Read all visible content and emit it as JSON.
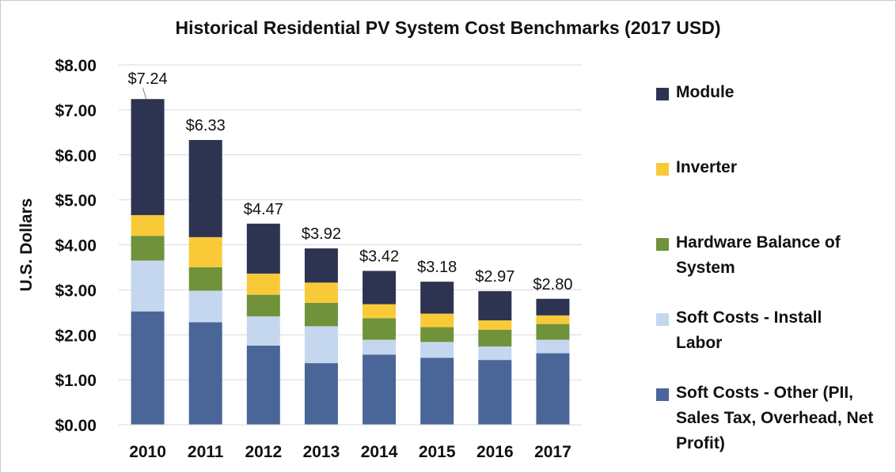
{
  "chart_data": {
    "type": "bar",
    "stacked": true,
    "title": "Historical Residential PV System Cost Benchmarks (2017 USD)",
    "xlabel": "",
    "ylabel": "U.S. Dollars",
    "ylim": [
      0,
      8
    ],
    "yticks": [
      "$0.00",
      "$1.00",
      "$2.00",
      "$3.00",
      "$4.00",
      "$5.00",
      "$6.00",
      "$7.00",
      "$8.00"
    ],
    "grid": true,
    "legend_position": "right",
    "categories": [
      "2010",
      "2011",
      "2012",
      "2013",
      "2014",
      "2015",
      "2016",
      "2017"
    ],
    "totals": [
      "$7.24",
      "$6.33",
      "$4.47",
      "$3.92",
      "$3.42",
      "$3.18",
      "$2.97",
      "$2.80"
    ],
    "series": [
      {
        "name": "Soft Costs - Other (PII, Sales Tax, Overhead, Net Profit)",
        "color": "#4a6699",
        "values": [
          2.52,
          2.28,
          1.76,
          1.37,
          1.56,
          1.49,
          1.44,
          1.59
        ]
      },
      {
        "name": "Soft Costs - Install Labor",
        "color": "#c5d7ef",
        "values": [
          1.13,
          0.7,
          0.65,
          0.82,
          0.33,
          0.35,
          0.3,
          0.3
        ]
      },
      {
        "name": "Hardware Balance of System",
        "color": "#70923a",
        "values": [
          0.55,
          0.52,
          0.48,
          0.52,
          0.48,
          0.33,
          0.37,
          0.35
        ]
      },
      {
        "name": "Inverter",
        "color": "#f9ca38",
        "values": [
          0.46,
          0.67,
          0.47,
          0.45,
          0.31,
          0.3,
          0.21,
          0.19
        ]
      },
      {
        "name": "Module",
        "color": "#2d3452",
        "values": [
          2.58,
          2.16,
          1.11,
          0.76,
          0.74,
          0.71,
          0.65,
          0.37
        ]
      }
    ]
  }
}
